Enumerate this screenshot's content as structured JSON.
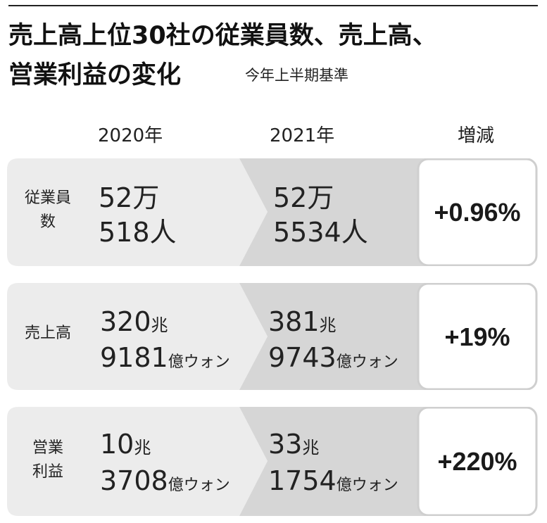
{
  "title": {
    "line1": "売上高上位30社の従業員数、売上高、",
    "line2": "営業利益の変化",
    "subtitle": "今年上半期基準"
  },
  "chart_data": {
    "type": "table",
    "columns": [
      "2020年",
      "2021年",
      "増減"
    ],
    "rows": [
      {
        "label_lines": [
          "従業員",
          "数"
        ],
        "y2020": {
          "line1": "52万",
          "line2": "518人"
        },
        "y2021": {
          "line1": "52万",
          "line2": "5534人"
        },
        "change": "+0.96%"
      },
      {
        "label_lines": [
          "売上高"
        ],
        "y2020": {
          "line1_num": "320",
          "line1_unit": "兆",
          "line2_num": "9181",
          "line2_unit": "億ウォン"
        },
        "y2021": {
          "line1_num": "381",
          "line1_unit": "兆",
          "line2_num": "9743",
          "line2_unit": "億ウォン"
        },
        "change": "+19%"
      },
      {
        "label_lines": [
          "営業",
          "利益"
        ],
        "y2020": {
          "line1_num": "10",
          "line1_unit": "兆",
          "line2_num": "3708",
          "line2_unit": "億ウォン"
        },
        "y2021": {
          "line1_num": "33",
          "line1_unit": "兆",
          "line2_num": "1754",
          "line2_unit": "億ウォン"
        },
        "change": "+220%"
      }
    ]
  },
  "colors": {
    "panel_2020": "#ececec",
    "panel_2021": "#d6d6d6",
    "change_box": "#ffffff",
    "change_border": "#cfcfcf",
    "text": "#222222"
  }
}
